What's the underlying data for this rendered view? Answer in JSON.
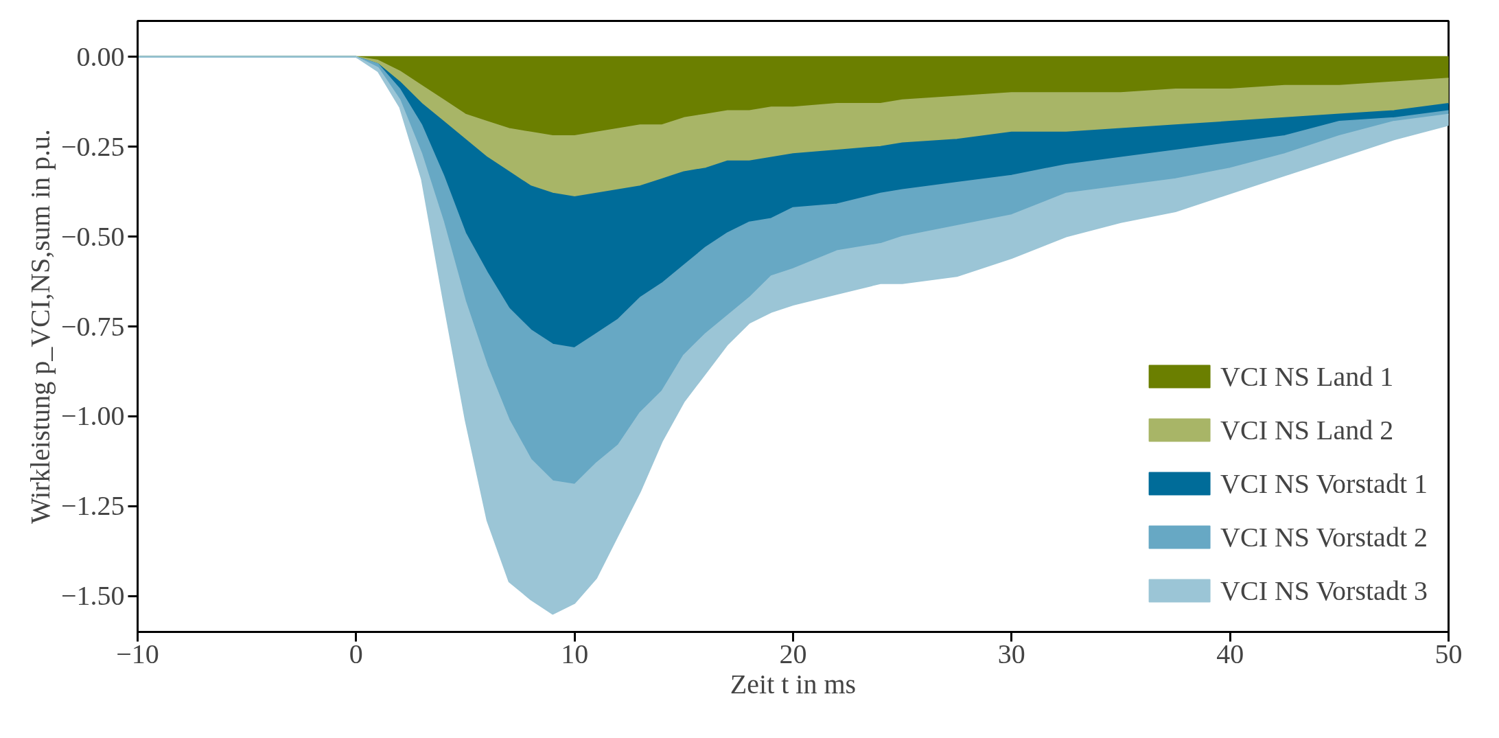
{
  "chart_data": {
    "type": "area",
    "stacked": true,
    "xlabel": "Zeit t in ms",
    "ylabel": "Wirkleistung p_VCI,NS,sum in p.u.",
    "x": [
      -10,
      0,
      1,
      2,
      3,
      4,
      5,
      6,
      7,
      8,
      9,
      10,
      11,
      12,
      13,
      14,
      15,
      16,
      17,
      18,
      19,
      20,
      22,
      24,
      25,
      27.5,
      30,
      32.5,
      35,
      37.5,
      40,
      42.5,
      45,
      47.5,
      50
    ],
    "series": [
      {
        "name": "VCI NS Land 1",
        "color": "#6b7f00",
        "values": [
          0,
          0,
          -0.01,
          -0.04,
          -0.08,
          -0.12,
          -0.16,
          -0.18,
          -0.2,
          -0.21,
          -0.22,
          -0.22,
          -0.21,
          -0.2,
          -0.19,
          -0.19,
          -0.17,
          -0.16,
          -0.15,
          -0.15,
          -0.14,
          -0.14,
          -0.13,
          -0.13,
          -0.12,
          -0.11,
          -0.1,
          -0.1,
          -0.1,
          -0.09,
          -0.09,
          -0.08,
          -0.08,
          -0.07,
          -0.06
        ]
      },
      {
        "name": "VCI NS Land 2",
        "color": "#a8b567",
        "values": [
          0,
          0,
          -0.01,
          -0.03,
          -0.05,
          -0.06,
          -0.07,
          -0.1,
          -0.12,
          -0.15,
          -0.16,
          -0.17,
          -0.17,
          -0.17,
          -0.17,
          -0.15,
          -0.15,
          -0.15,
          -0.14,
          -0.14,
          -0.14,
          -0.13,
          -0.13,
          -0.12,
          -0.12,
          -0.12,
          -0.11,
          -0.11,
          -0.1,
          -0.1,
          -0.09,
          -0.09,
          -0.08,
          -0.08,
          -0.07
        ]
      },
      {
        "name": "VCI NS Vorstadt 1",
        "color": "#006c99",
        "values": [
          0,
          0,
          0,
          -0.02,
          -0.06,
          -0.15,
          -0.26,
          -0.32,
          -0.38,
          -0.4,
          -0.42,
          -0.42,
          -0.39,
          -0.36,
          -0.31,
          -0.29,
          -0.26,
          -0.22,
          -0.2,
          -0.17,
          -0.17,
          -0.15,
          -0.15,
          -0.13,
          -0.13,
          -0.12,
          -0.12,
          -0.09,
          -0.08,
          -0.07,
          -0.06,
          -0.05,
          -0.02,
          -0.02,
          -0.02
        ]
      },
      {
        "name": "VCI NS Vorstadt 2",
        "color": "#67a8c4",
        "values": [
          0,
          0,
          -0.01,
          -0.03,
          -0.08,
          -0.13,
          -0.19,
          -0.26,
          -0.31,
          -0.36,
          -0.38,
          -0.38,
          -0.36,
          -0.35,
          -0.32,
          -0.3,
          -0.25,
          -0.24,
          -0.23,
          -0.21,
          -0.16,
          -0.17,
          -0.13,
          -0.14,
          -0.13,
          -0.12,
          -0.11,
          -0.08,
          -0.08,
          -0.08,
          -0.07,
          -0.05,
          -0.04,
          -0.01,
          -0.01
        ]
      },
      {
        "name": "VCI NS Vorstadt 3",
        "color": "#9bc5d6",
        "values": [
          0,
          0,
          -0.01,
          -0.02,
          -0.07,
          -0.22,
          -0.33,
          -0.43,
          -0.45,
          -0.39,
          -0.37,
          -0.33,
          -0.32,
          -0.25,
          -0.22,
          -0.14,
          -0.13,
          -0.11,
          -0.08,
          -0.07,
          -0.1,
          -0.1,
          -0.12,
          -0.11,
          -0.13,
          -0.14,
          -0.12,
          -0.12,
          -0.1,
          -0.09,
          -0.07,
          -0.06,
          -0.06,
          -0.05,
          -0.03
        ]
      }
    ],
    "xlim": [
      -10,
      50
    ],
    "xticks": [
      {
        "value": -10,
        "label": "−10"
      },
      0,
      10,
      20,
      30,
      40,
      50
    ],
    "ylim": [
      -1.6,
      0.1
    ],
    "yticks": [
      {
        "value": -1.5,
        "label": "−1.50"
      },
      {
        "value": -1.25,
        "label": "−1.25"
      },
      {
        "value": -1.0,
        "label": "−1.00"
      },
      {
        "value": -0.75,
        "label": "−0.75"
      },
      {
        "value": -0.5,
        "label": "−0.50"
      },
      {
        "value": -0.25,
        "label": "−0.25"
      },
      {
        "value": 0,
        "label": "0.00"
      }
    ],
    "grid": false,
    "legend": "bottom right"
  }
}
